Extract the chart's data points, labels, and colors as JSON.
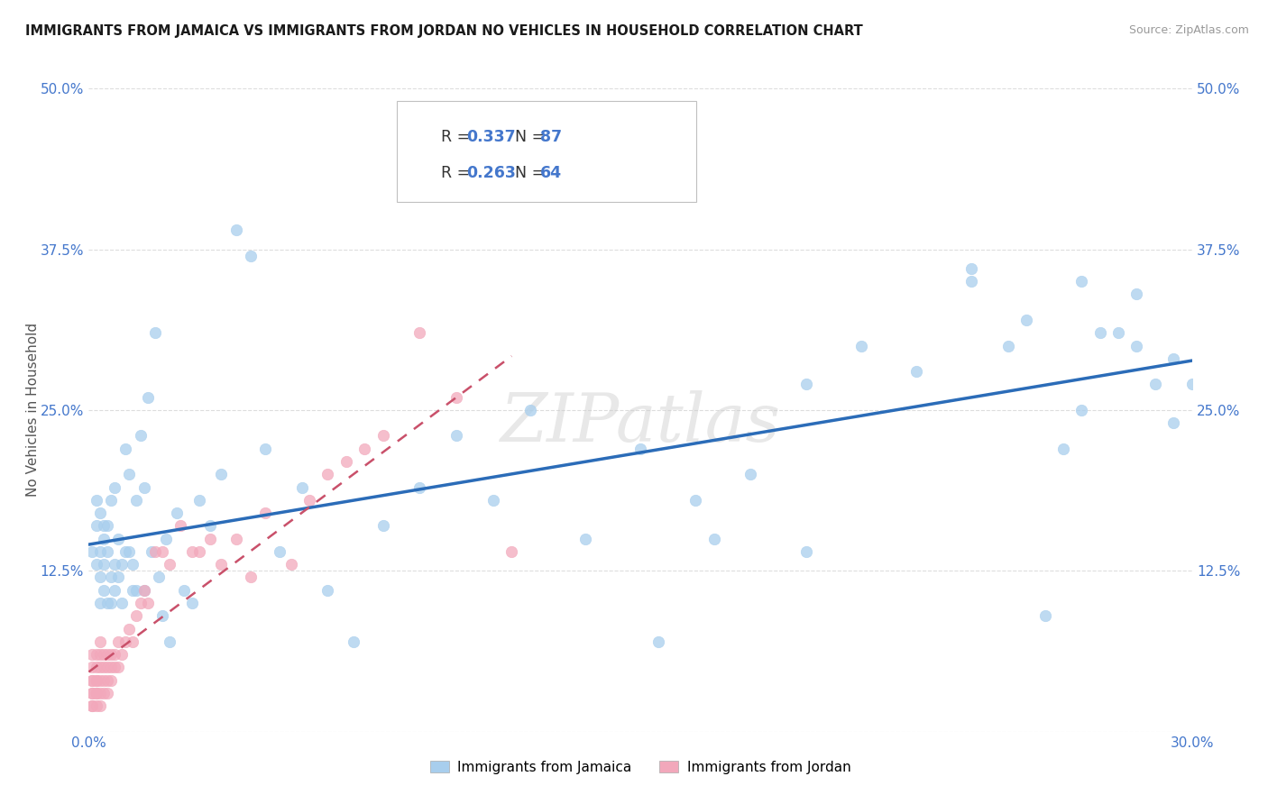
{
  "title": "IMMIGRANTS FROM JAMAICA VS IMMIGRANTS FROM JORDAN NO VEHICLES IN HOUSEHOLD CORRELATION CHART",
  "source": "Source: ZipAtlas.com",
  "ylabel": "No Vehicles in Household",
  "xlim": [
    0.0,
    0.3
  ],
  "ylim": [
    0.0,
    0.5
  ],
  "xticks": [
    0.0,
    0.05,
    0.1,
    0.15,
    0.2,
    0.25,
    0.3
  ],
  "yticks": [
    0.0,
    0.125,
    0.25,
    0.375,
    0.5
  ],
  "ytick_labels": [
    "",
    "12.5%",
    "25.0%",
    "37.5%",
    "50.0%"
  ],
  "xtick_labels": [
    "0.0%",
    "",
    "",
    "",
    "",
    "",
    "30.0%"
  ],
  "legend_r1": "0.337",
  "legend_n1": "87",
  "legend_r2": "0.263",
  "legend_n2": "64",
  "color_jamaica": "#A8CEED",
  "color_jordan": "#F2A8BB",
  "color_line_jamaica": "#2B6CB8",
  "color_line_jordan": "#C9506A",
  "color_ticks": "#4477CC",
  "watermark": "ZIPatlas",
  "background_color": "#FFFFFF",
  "grid_color": "#DDDDDD",
  "jamaica_x": [
    0.001,
    0.002,
    0.002,
    0.002,
    0.003,
    0.003,
    0.003,
    0.003,
    0.004,
    0.004,
    0.004,
    0.004,
    0.005,
    0.005,
    0.005,
    0.006,
    0.006,
    0.006,
    0.007,
    0.007,
    0.007,
    0.008,
    0.008,
    0.009,
    0.009,
    0.01,
    0.01,
    0.011,
    0.011,
    0.012,
    0.012,
    0.013,
    0.013,
    0.014,
    0.015,
    0.015,
    0.016,
    0.017,
    0.018,
    0.019,
    0.02,
    0.021,
    0.022,
    0.024,
    0.026,
    0.028,
    0.03,
    0.033,
    0.036,
    0.04,
    0.044,
    0.048,
    0.052,
    0.058,
    0.065,
    0.072,
    0.08,
    0.09,
    0.1,
    0.11,
    0.12,
    0.135,
    0.15,
    0.165,
    0.18,
    0.195,
    0.21,
    0.225,
    0.24,
    0.255,
    0.265,
    0.275,
    0.285,
    0.295,
    0.3,
    0.26,
    0.27,
    0.24,
    0.25,
    0.29,
    0.28,
    0.195,
    0.17,
    0.155,
    0.285,
    0.27,
    0.295
  ],
  "jamaica_y": [
    0.14,
    0.13,
    0.16,
    0.18,
    0.12,
    0.14,
    0.17,
    0.1,
    0.13,
    0.15,
    0.11,
    0.16,
    0.1,
    0.14,
    0.16,
    0.1,
    0.12,
    0.18,
    0.11,
    0.13,
    0.19,
    0.12,
    0.15,
    0.1,
    0.13,
    0.22,
    0.14,
    0.14,
    0.2,
    0.11,
    0.13,
    0.11,
    0.18,
    0.23,
    0.11,
    0.19,
    0.26,
    0.14,
    0.31,
    0.12,
    0.09,
    0.15,
    0.07,
    0.17,
    0.11,
    0.1,
    0.18,
    0.16,
    0.2,
    0.39,
    0.37,
    0.22,
    0.14,
    0.19,
    0.11,
    0.07,
    0.16,
    0.19,
    0.23,
    0.18,
    0.25,
    0.15,
    0.22,
    0.18,
    0.2,
    0.27,
    0.3,
    0.28,
    0.35,
    0.32,
    0.22,
    0.31,
    0.34,
    0.29,
    0.27,
    0.09,
    0.25,
    0.36,
    0.3,
    0.27,
    0.31,
    0.14,
    0.15,
    0.07,
    0.3,
    0.35,
    0.24
  ],
  "jordan_x": [
    0.001,
    0.001,
    0.001,
    0.001,
    0.001,
    0.001,
    0.001,
    0.001,
    0.002,
    0.002,
    0.002,
    0.002,
    0.002,
    0.002,
    0.002,
    0.003,
    0.003,
    0.003,
    0.003,
    0.003,
    0.003,
    0.004,
    0.004,
    0.004,
    0.004,
    0.005,
    0.005,
    0.005,
    0.005,
    0.006,
    0.006,
    0.006,
    0.007,
    0.007,
    0.008,
    0.008,
    0.009,
    0.01,
    0.011,
    0.012,
    0.013,
    0.014,
    0.015,
    0.016,
    0.018,
    0.02,
    0.022,
    0.025,
    0.028,
    0.03,
    0.033,
    0.036,
    0.04,
    0.044,
    0.048,
    0.055,
    0.06,
    0.065,
    0.07,
    0.075,
    0.08,
    0.09,
    0.1,
    0.115
  ],
  "jordan_y": [
    0.02,
    0.03,
    0.04,
    0.05,
    0.06,
    0.02,
    0.03,
    0.04,
    0.02,
    0.03,
    0.04,
    0.05,
    0.06,
    0.03,
    0.04,
    0.02,
    0.03,
    0.04,
    0.05,
    0.06,
    0.07,
    0.03,
    0.04,
    0.05,
    0.06,
    0.03,
    0.04,
    0.05,
    0.06,
    0.04,
    0.05,
    0.06,
    0.05,
    0.06,
    0.05,
    0.07,
    0.06,
    0.07,
    0.08,
    0.07,
    0.09,
    0.1,
    0.11,
    0.1,
    0.14,
    0.14,
    0.13,
    0.16,
    0.14,
    0.14,
    0.15,
    0.13,
    0.15,
    0.12,
    0.17,
    0.13,
    0.18,
    0.2,
    0.21,
    0.22,
    0.23,
    0.31,
    0.26,
    0.14
  ]
}
